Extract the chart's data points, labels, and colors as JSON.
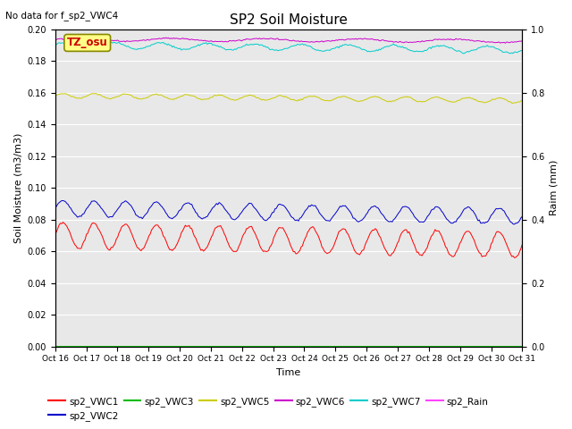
{
  "title": "SP2 Soil Moisture",
  "no_data_text": "No data for f_sp2_VWC4",
  "tz_label": "TZ_osu",
  "xlabel": "Time",
  "ylabel_left": "Soil Moisture (m3/m3)",
  "ylabel_right": "Raim (mm)",
  "ylim_left": [
    0.0,
    0.2
  ],
  "ylim_right": [
    0.0,
    1.0
  ],
  "yticks_left": [
    0.0,
    0.02,
    0.04,
    0.06,
    0.08,
    0.1,
    0.12,
    0.14,
    0.16,
    0.18,
    0.2
  ],
  "yticks_right": [
    0.0,
    0.2,
    0.4,
    0.6,
    0.8,
    1.0
  ],
  "background_color": "#e8e8e8",
  "series": [
    {
      "name": "sp2_VWC1",
      "color": "#ff0000",
      "base": 0.07,
      "amplitude": 0.008,
      "period_hours": 24,
      "trend": -0.006,
      "noise": 0.0004
    },
    {
      "name": "sp2_VWC2",
      "color": "#0000cc",
      "base": 0.087,
      "amplitude": 0.005,
      "period_hours": 24,
      "trend": -0.005,
      "noise": 0.0003
    },
    {
      "name": "sp2_VWC3",
      "color": "#00bb00",
      "base": 0.0005,
      "amplitude": 0.0,
      "period_hours": 24,
      "trend": 0.0,
      "noise": 0.0
    },
    {
      "name": "sp2_VWC5",
      "color": "#cccc00",
      "base": 0.158,
      "amplitude": 0.0015,
      "period_hours": 24,
      "trend": -0.003,
      "noise": 0.0002
    },
    {
      "name": "sp2_VWC6",
      "color": "#cc00cc",
      "base": 0.1935,
      "amplitude": 0.001,
      "period_hours": 72,
      "trend": -0.001,
      "noise": 0.0002
    },
    {
      "name": "sp2_VWC7",
      "color": "#00cccc",
      "base": 0.19,
      "amplitude": 0.002,
      "period_hours": 36,
      "trend": -0.003,
      "noise": 0.0003
    },
    {
      "name": "sp2_Rain",
      "color": "#ff44ff",
      "base": 0.0,
      "amplitude": 0.0,
      "period_hours": 24,
      "trend": 0.0,
      "noise": 0.0
    }
  ],
  "xtick_labels": [
    "Oct 16",
    "Oct 17",
    "Oct 18",
    "Oct 19",
    "Oct 20",
    "Oct 21",
    "Oct 22",
    "Oct 23",
    "Oct 24",
    "Oct 25",
    "Oct 26",
    "Oct 27",
    "Oct 28",
    "Oct 29",
    "Oct 30",
    "Oct 31"
  ],
  "fig_width": 6.4,
  "fig_height": 4.8,
  "dpi": 100
}
